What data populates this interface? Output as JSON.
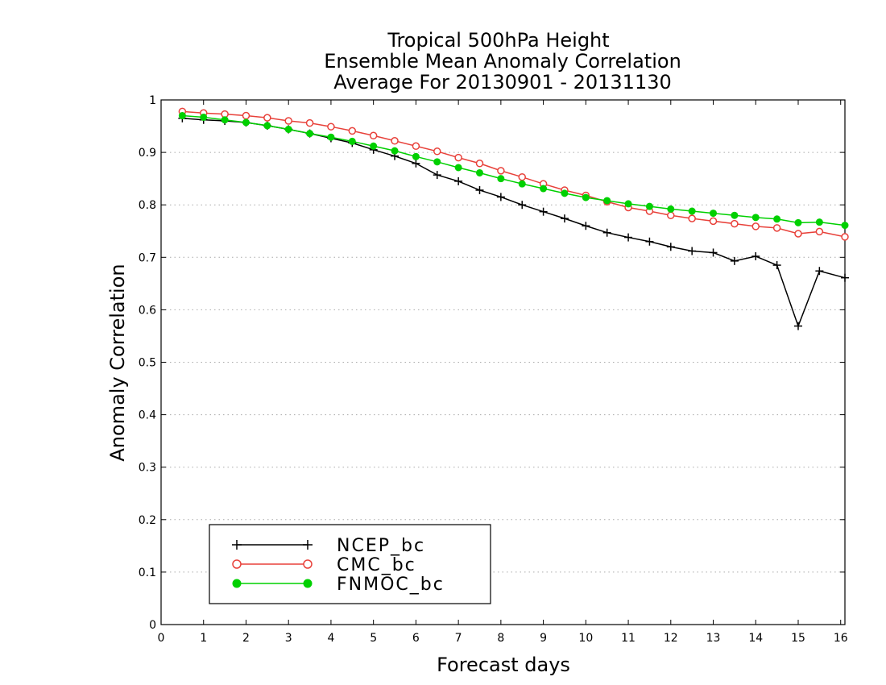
{
  "chart_data": {
    "type": "line",
    "title_lines": [
      "Tropical 500hPa Height",
      "Ensemble Mean Anomaly Correlation",
      "Average For 20130901 - 20131130"
    ],
    "xlabel": "Forecast days",
    "ylabel": "Anomaly Correlation",
    "xlim": [
      0,
      16.1
    ],
    "ylim": [
      0,
      1
    ],
    "x_ticks": [
      0,
      1,
      2,
      3,
      4,
      5,
      6,
      7,
      8,
      9,
      10,
      11,
      12,
      13,
      14,
      15,
      16
    ],
    "y_ticks": [
      0,
      0.1,
      0.2,
      0.3,
      0.4,
      0.5,
      0.6,
      0.7,
      0.8,
      0.9,
      1
    ],
    "y_tick_labels": [
      "0",
      "0.1",
      "0.2",
      "0.3",
      "0.4",
      "0.5",
      "0.6",
      "0.7",
      "0.8",
      "0.9",
      "1"
    ],
    "grid": "horizontal dotted",
    "legend_position": "bottom-left",
    "x": [
      0.5,
      1.0,
      1.5,
      2.0,
      2.5,
      3.0,
      3.5,
      4.0,
      4.5,
      5.0,
      5.5,
      6.0,
      6.5,
      7.0,
      7.5,
      8.0,
      8.5,
      9.0,
      9.5,
      10.0,
      10.5,
      11.0,
      11.5,
      12.0,
      12.5,
      13.0,
      13.5,
      14.0,
      14.5,
      15.0,
      15.5,
      16.1
    ],
    "series": [
      {
        "name": "NCEP_bc",
        "color": "#000000",
        "marker": "plus",
        "values": [
          0.965,
          0.962,
          0.96,
          0.957,
          0.951,
          0.944,
          0.936,
          0.927,
          0.918,
          0.905,
          0.893,
          0.879,
          0.857,
          0.845,
          0.828,
          0.815,
          0.8,
          0.787,
          0.774,
          0.76,
          0.747,
          0.738,
          0.73,
          0.72,
          0.712,
          0.709,
          0.693,
          0.702,
          0.685,
          0.569,
          0.674,
          0.661
        ]
      },
      {
        "name": "CMC_bc",
        "color": "#e8413a",
        "marker": "open-circle",
        "values": [
          0.978,
          0.975,
          0.973,
          0.97,
          0.966,
          0.96,
          0.956,
          0.949,
          0.941,
          0.932,
          0.922,
          0.912,
          0.902,
          0.89,
          0.879,
          0.865,
          0.853,
          0.84,
          0.828,
          0.818,
          0.806,
          0.795,
          0.788,
          0.78,
          0.774,
          0.769,
          0.764,
          0.759,
          0.756,
          0.745,
          0.749,
          0.739
        ]
      },
      {
        "name": "FNMOC_bc",
        "color": "#00d000",
        "marker": "filled-circle",
        "values": [
          0.97,
          0.967,
          0.962,
          0.957,
          0.951,
          0.944,
          0.936,
          0.929,
          0.921,
          0.912,
          0.903,
          0.892,
          0.882,
          0.871,
          0.861,
          0.85,
          0.84,
          0.831,
          0.822,
          0.814,
          0.808,
          0.802,
          0.797,
          0.792,
          0.788,
          0.784,
          0.78,
          0.776,
          0.773,
          0.766,
          0.767,
          0.761
        ]
      }
    ]
  }
}
